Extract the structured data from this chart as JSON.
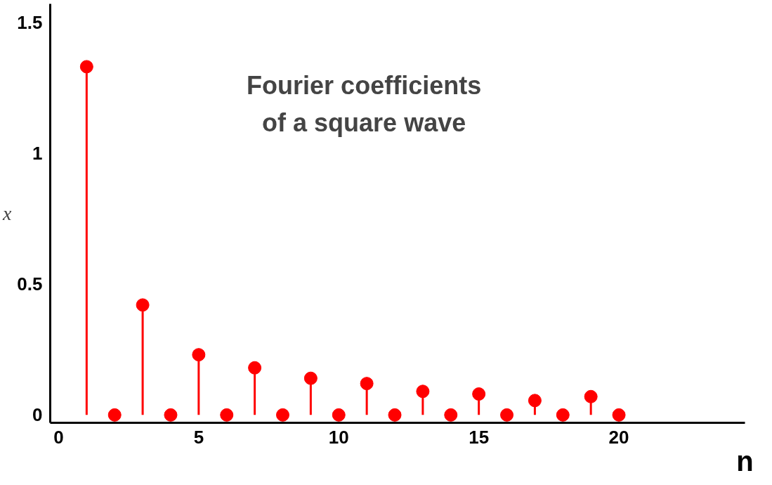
{
  "chart_data": {
    "type": "lollipop",
    "title": "Fourier coefficients\nof a square wave",
    "xlabel": "n",
    "ylabel": "x",
    "x": [
      1,
      2,
      3,
      4,
      5,
      6,
      7,
      8,
      9,
      10,
      11,
      12,
      13,
      14,
      15,
      16,
      17,
      18,
      19,
      20
    ],
    "values": [
      1.33,
      0,
      0.42,
      0,
      0.23,
      0,
      0.18,
      0,
      0.14,
      0,
      0.12,
      0,
      0.09,
      0,
      0.08,
      0,
      0.055,
      0,
      0.07,
      0
    ],
    "color": "#ff0000",
    "marker": "circle",
    "xlim": [
      -0.3,
      24.5
    ],
    "ylim": [
      -0.03,
      1.57
    ],
    "xticks": [
      0,
      5,
      10,
      15,
      20
    ],
    "yticks": [
      0,
      0.5,
      1,
      1.5
    ],
    "grid": false
  }
}
